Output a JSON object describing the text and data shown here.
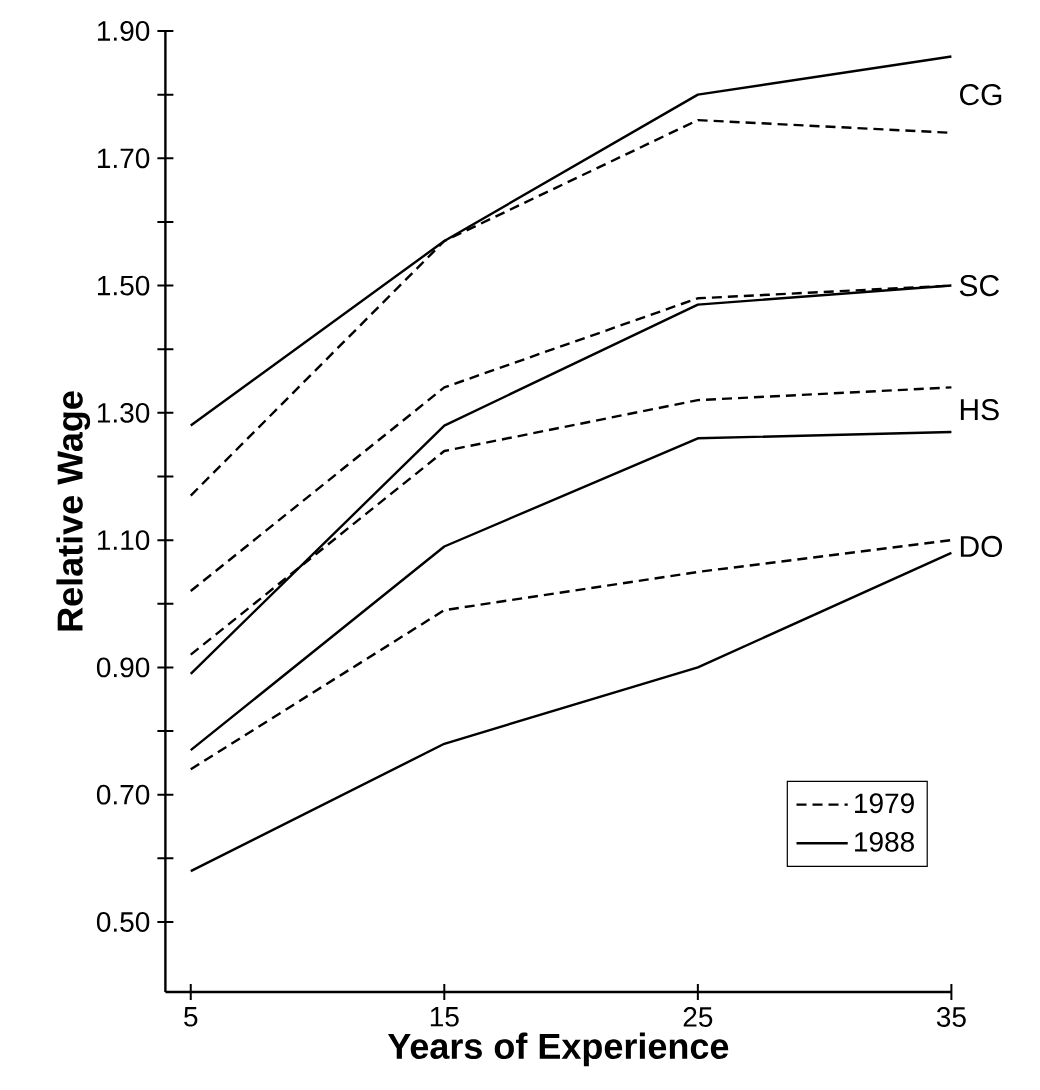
{
  "chart_data": {
    "type": "line",
    "xlabel": "Years of Experience",
    "ylabel": "Relative Wage",
    "x": [
      5,
      15,
      25,
      35
    ],
    "series": [
      {
        "name": "1979",
        "color": "#000000",
        "line_style": "dashed",
        "values": [
          1.17,
          1.57,
          1.76,
          1.74
        ]
      },
      {
        "name": "1988",
        "color": "#000000",
        "line_style": "solid",
        "values": [
          1.28,
          1.57,
          1.8,
          1.86
        ]
      },
      {
        "color": "#000000",
        "line_style": "dashed",
        "values": [
          1.02,
          1.34,
          1.48,
          1.5
        ]
      },
      {
        "color": "#000000",
        "line_style": "solid",
        "values": [
          0.89,
          1.28,
          1.47,
          1.5
        ]
      },
      {
        "color": "#000000",
        "line_style": "dashed",
        "values": [
          0.92,
          1.24,
          1.32,
          1.34
        ]
      },
      {
        "color": "#000000",
        "line_style": "solid",
        "values": [
          0.77,
          1.09,
          1.26,
          1.27
        ]
      },
      {
        "color": "#000000",
        "line_style": "dashed",
        "values": [
          0.74,
          0.99,
          1.05,
          1.1
        ]
      },
      {
        "color": "#000000",
        "line_style": "solid",
        "values": [
          0.58,
          0.78,
          0.9,
          1.08
        ]
      }
    ],
    "xlim": [
      4,
      35
    ],
    "ylim": [
      0.39,
      1.9
    ],
    "xticks": [
      5,
      15,
      25,
      35
    ],
    "yticks": [
      {
        "value": 0.5,
        "label": "0.50"
      },
      {
        "value": 0.6,
        "label": null
      },
      {
        "value": 0.7,
        "label": "0.70"
      },
      {
        "value": 0.8,
        "label": null
      },
      {
        "value": 0.9,
        "label": "0.90"
      },
      {
        "value": 1.0,
        "label": null
      },
      {
        "value": 1.1,
        "label": "1.10"
      },
      {
        "value": 1.2,
        "label": null
      },
      {
        "value": 1.3,
        "label": "1.30"
      },
      {
        "value": 1.4,
        "label": null
      },
      {
        "value": 1.5,
        "label": "1.50"
      },
      {
        "value": 1.6,
        "label": null
      },
      {
        "value": 1.7,
        "label": "1.70"
      },
      {
        "value": 1.8,
        "label": null
      },
      {
        "value": 1.9,
        "label": "1.90"
      }
    ],
    "annotations": [
      "CG",
      "SC",
      "HS",
      "DO"
    ],
    "legend": "bottom right"
  }
}
